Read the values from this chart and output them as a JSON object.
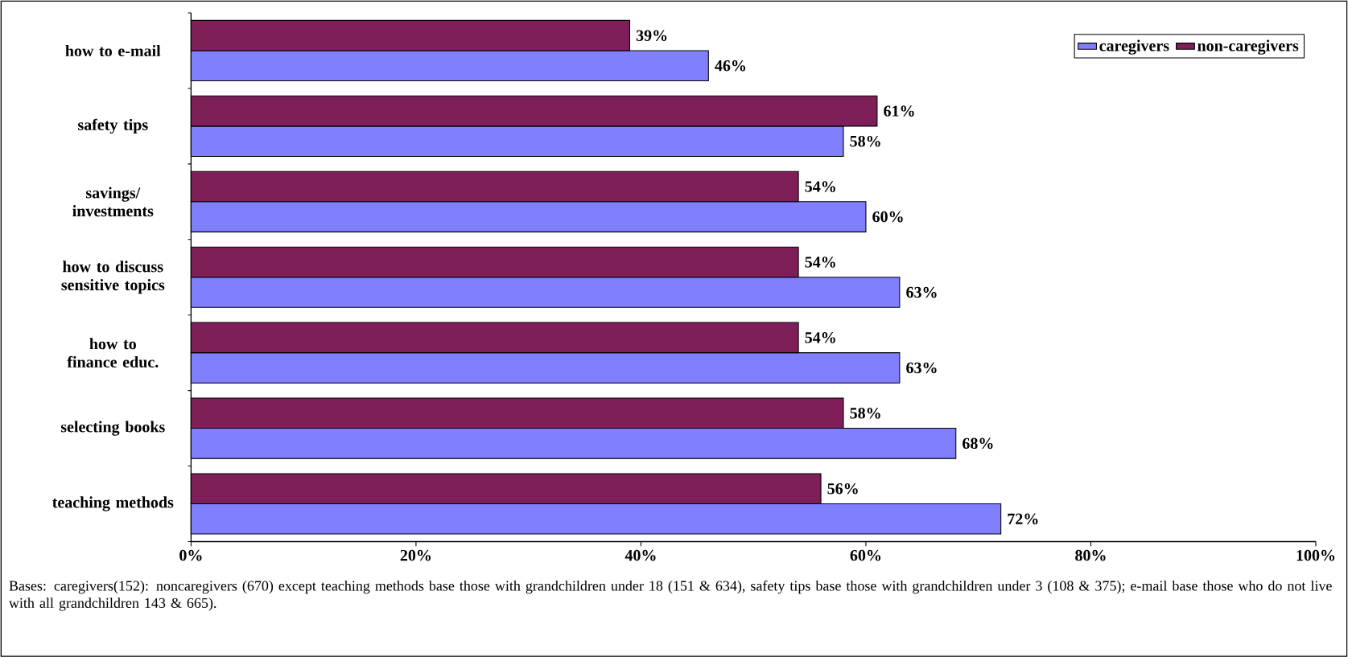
{
  "chart_data": {
    "type": "bar",
    "orientation": "horizontal",
    "categories": [
      "how to e-mail",
      "safety tips",
      "savings/ investments",
      "how to discuss sensitive topics",
      "how to finance educ.",
      "selecting books",
      "teaching methods"
    ],
    "series": [
      {
        "name": "caregivers",
        "color": "#8080ff",
        "values": [
          46,
          58,
          60,
          63,
          63,
          68,
          72
        ],
        "value_labels": [
          "46%",
          "58%",
          "60%",
          "63%",
          "63%",
          "68%",
          "72%"
        ]
      },
      {
        "name": "non-caregivers",
        "color": "#7f1f5a",
        "values": [
          39,
          61,
          54,
          54,
          54,
          58,
          56
        ],
        "value_labels": [
          "39%",
          "61%",
          "54%",
          "54%",
          "54%",
          "58%",
          "56%"
        ]
      }
    ],
    "xlim": [
      0,
      100
    ],
    "xticks": [
      {
        "value": 0,
        "label": "0%"
      },
      {
        "value": 20,
        "label": "20%"
      },
      {
        "value": 40,
        "label": "40%"
      },
      {
        "value": 60,
        "label": "60%"
      },
      {
        "value": 80,
        "label": "80%"
      },
      {
        "value": 100,
        "label": "100%"
      }
    ],
    "legend": "top right",
    "annotations": [
      "Bases:  caregivers(152): noncaregivers (670) except teaching methods base those with grandchildren under 18 (151 & 634), safety tips base  those with grandchildren under 3 (108 & 375); e-mail base those who do not live with all grandchildren 143 & 665)."
    ]
  }
}
